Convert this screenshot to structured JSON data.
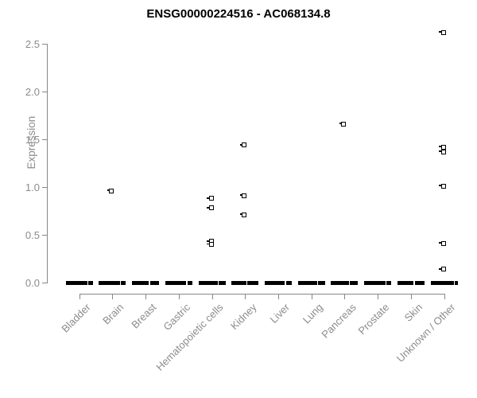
{
  "title": "ENSG00000224516 - AC068134.8",
  "chart_data": {
    "type": "scatter",
    "title": "ENSG00000224516 - AC068134.8",
    "xlabel": "",
    "ylabel": "Expression",
    "ylim": [
      0,
      2.5
    ],
    "yticks": [
      "0.0",
      "0.5",
      "1.0",
      "1.5",
      "2.0",
      "2.5"
    ],
    "grid": false,
    "legend": false,
    "marker": "small open black square",
    "baseline_cluster_value": 0,
    "baseline_note": "every category shows a dense overplotted cluster of points at expression 0, forming a thick black dash",
    "categories": [
      "Bladder",
      "Brain",
      "Breast",
      "Gastric",
      "Hematopoietic cells",
      "Kidney",
      "Liver",
      "Lung",
      "Pancreas",
      "Prostate",
      "Skin",
      "Unknown / Other"
    ],
    "series": [
      {
        "category": "Bladder",
        "nonzero_values": []
      },
      {
        "category": "Brain",
        "nonzero_values": [
          0.96
        ]
      },
      {
        "category": "Breast",
        "nonzero_values": []
      },
      {
        "category": "Gastric",
        "nonzero_values": []
      },
      {
        "category": "Hematopoietic cells",
        "nonzero_values": [
          0.88,
          0.78,
          0.43,
          0.4
        ]
      },
      {
        "category": "Kidney",
        "nonzero_values": [
          1.44,
          0.91,
          0.71
        ]
      },
      {
        "category": "Liver",
        "nonzero_values": []
      },
      {
        "category": "Lung",
        "nonzero_values": []
      },
      {
        "category": "Pancreas",
        "nonzero_values": [
          1.66
        ]
      },
      {
        "category": "Prostate",
        "nonzero_values": []
      },
      {
        "category": "Skin",
        "nonzero_values": []
      },
      {
        "category": "Unknown / Other",
        "nonzero_values": [
          2.62,
          1.42,
          1.37,
          1.01,
          0.41,
          0.14
        ]
      }
    ],
    "colors": {
      "points": "#000000",
      "axes": "#878787",
      "tick_labels": "#8c8c8c",
      "axis_label": "#8c8c8c",
      "title": "#000000",
      "background": "#ffffff"
    }
  }
}
